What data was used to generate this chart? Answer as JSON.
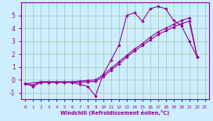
{
  "background_color": "#cceeff",
  "grid_color": "#aaccbb",
  "line_color": "#990099",
  "xlabel": "Windchill (Refroidissement éolien,°C)",
  "ylim": [
    -1.5,
    6.0
  ],
  "xlim": [
    -0.5,
    23.5
  ],
  "yticks": [
    -1,
    0,
    1,
    2,
    3,
    4,
    5
  ],
  "xticks": [
    0,
    1,
    2,
    3,
    4,
    5,
    6,
    7,
    8,
    9,
    10,
    11,
    12,
    13,
    14,
    15,
    16,
    17,
    18,
    19,
    20,
    21,
    22,
    23
  ],
  "series": [
    {
      "x": [
        0,
        1,
        2,
        3,
        4,
        5,
        6,
        7,
        8,
        9,
        10,
        11,
        12,
        13,
        14,
        15,
        16,
        17,
        18,
        19,
        20,
        21,
        22
      ],
      "y": [
        -0.3,
        -0.5,
        -0.2,
        -0.2,
        -0.2,
        -0.2,
        -0.2,
        -0.35,
        -0.5,
        -1.25,
        0.45,
        1.55,
        2.7,
        5.0,
        5.2,
        4.55,
        5.5,
        5.7,
        5.5,
        4.6,
        4.2,
        3.0,
        1.8
      ]
    },
    {
      "x": [
        0,
        1,
        2,
        3,
        4,
        5,
        6,
        7,
        8,
        9,
        10,
        11,
        12,
        13,
        14,
        15,
        16,
        17,
        18,
        19,
        20,
        21,
        22
      ],
      "y": [
        -0.3,
        -0.4,
        -0.15,
        -0.15,
        -0.15,
        -0.15,
        -0.15,
        -0.1,
        -0.05,
        0.0,
        0.4,
        0.9,
        1.4,
        1.9,
        2.4,
        2.8,
        3.3,
        3.7,
        4.0,
        4.3,
        4.6,
        4.8,
        1.8
      ]
    },
    {
      "x": [
        0,
        2,
        3,
        4,
        5,
        6,
        7,
        8,
        9,
        10,
        11,
        12,
        13,
        14,
        15,
        16,
        17,
        18,
        19,
        20,
        21,
        22
      ],
      "y": [
        -0.3,
        -0.15,
        -0.18,
        -0.18,
        -0.18,
        -0.18,
        -0.18,
        -0.15,
        -0.12,
        0.25,
        0.75,
        1.25,
        1.75,
        2.25,
        2.65,
        3.1,
        3.5,
        3.8,
        4.1,
        4.35,
        4.55,
        1.8
      ]
    }
  ]
}
